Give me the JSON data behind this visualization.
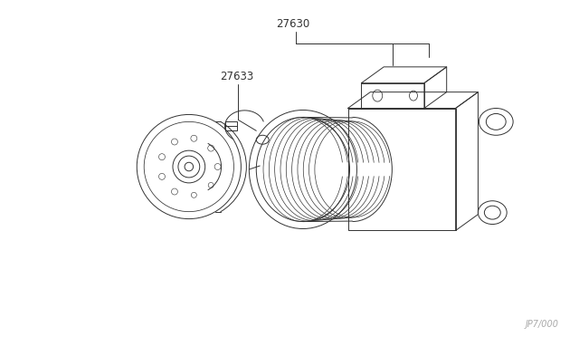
{
  "background_color": "#ffffff",
  "line_color": "#333333",
  "label_27630": "27630",
  "label_27633": "27633",
  "watermark": "JP7/000",
  "figsize": [
    6.4,
    3.72
  ],
  "dpi": 100
}
